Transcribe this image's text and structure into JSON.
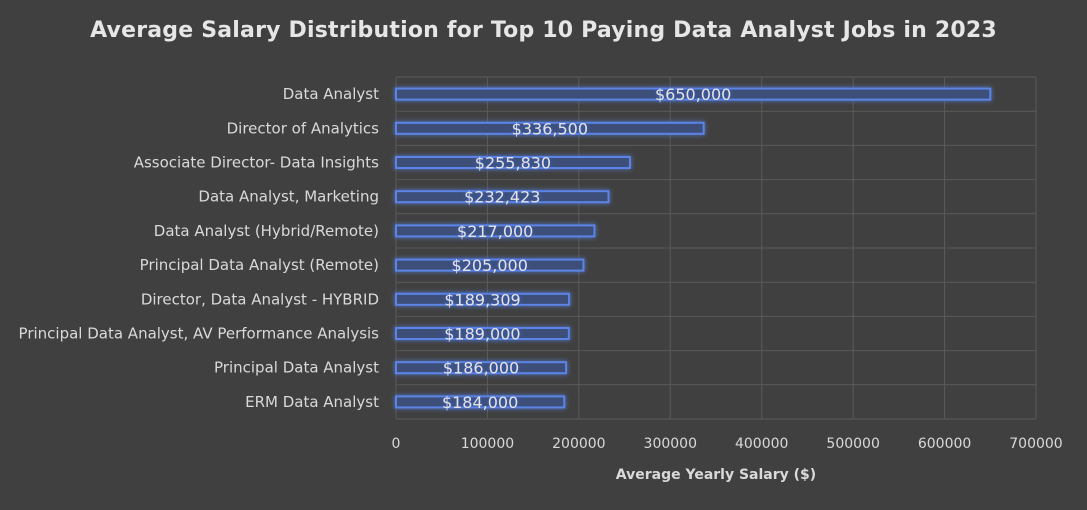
{
  "chart_data": {
    "type": "bar",
    "orientation": "horizontal",
    "title": "Average Salary Distribution for Top 10 Paying Data Analyst Jobs in 2023",
    "xlabel": "Average Yearly Salary ($)",
    "ylabel": "",
    "categories": [
      "Data Analyst",
      "Director of Analytics",
      "Associate Director- Data Insights",
      "Data Analyst, Marketing",
      "Data Analyst (Hybrid/Remote)",
      "Principal Data Analyst (Remote)",
      "Director, Data Analyst - HYBRID",
      "Principal Data Analyst, AV Performance Analysis",
      "Principal Data Analyst",
      "ERM Data Analyst"
    ],
    "values": [
      650000,
      336500,
      255830,
      232423,
      217000,
      205000,
      189309,
      189000,
      186000,
      184000
    ],
    "data_labels": [
      "$650,000",
      "$336,500",
      "$255,830",
      "$232,423",
      "$217,000",
      "$205,000",
      "$189,309",
      "$189,000",
      "$186,000",
      "$184,000"
    ],
    "xlim": [
      0,
      700000
    ],
    "x_ticks": [
      0,
      100000,
      200000,
      300000,
      400000,
      500000,
      600000,
      700000
    ],
    "x_tick_labels": [
      "0",
      "100000",
      "200000",
      "300000",
      "400000",
      "500000",
      "600000",
      "700000"
    ],
    "grid": "vertical",
    "legend": "none",
    "colors": {
      "background": "#404040",
      "bar_fill": "#3d4f78",
      "bar_edge": "#5b84e6",
      "bar_glow": "#4f7cff",
      "grid": "#5a5a5a",
      "text": "#d9d9d9"
    }
  }
}
